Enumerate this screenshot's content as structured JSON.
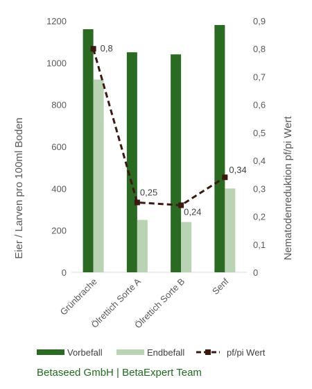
{
  "chart_data": {
    "type": "bar",
    "categories": [
      "Grünbrache",
      "Ölrettich Sorte A",
      "Ölrettich Sorte B",
      "Senf"
    ],
    "series": [
      {
        "name": "Vorbefall",
        "values": [
          1160,
          1050,
          1040,
          1180
        ],
        "axis": "left",
        "color": "#2a6a22"
      },
      {
        "name": "Endbefall",
        "values": [
          920,
          250,
          240,
          400
        ],
        "axis": "left",
        "color": "#b9d3b4"
      },
      {
        "name": "pf/pi Wert",
        "values": [
          0.8,
          0.25,
          0.24,
          0.34
        ],
        "axis": "right",
        "type": "line",
        "style": "dashed",
        "color": "#3a1a10",
        "data_labels": [
          "0,8",
          "0,25",
          "0,24",
          "0,34"
        ]
      }
    ],
    "y_left": {
      "label": "Eier / Larven pro 100ml Boden",
      "ylim": [
        0,
        1200
      ],
      "ticks": [
        "0",
        "200",
        "400",
        "600",
        "800",
        "1000",
        "1200"
      ]
    },
    "y_right": {
      "label": "Nematodenreduktion  pf/pi Wert",
      "ylim": [
        0,
        0.9
      ],
      "ticks": [
        "0",
        "0,1",
        "0,2",
        "0,3",
        "0,4",
        "0,5",
        "0,6",
        "0,7",
        "0,8",
        "0,9"
      ]
    },
    "grid": false,
    "legend": "bottom"
  },
  "footer": "Betaseed GmbH | BetaExpert Team"
}
